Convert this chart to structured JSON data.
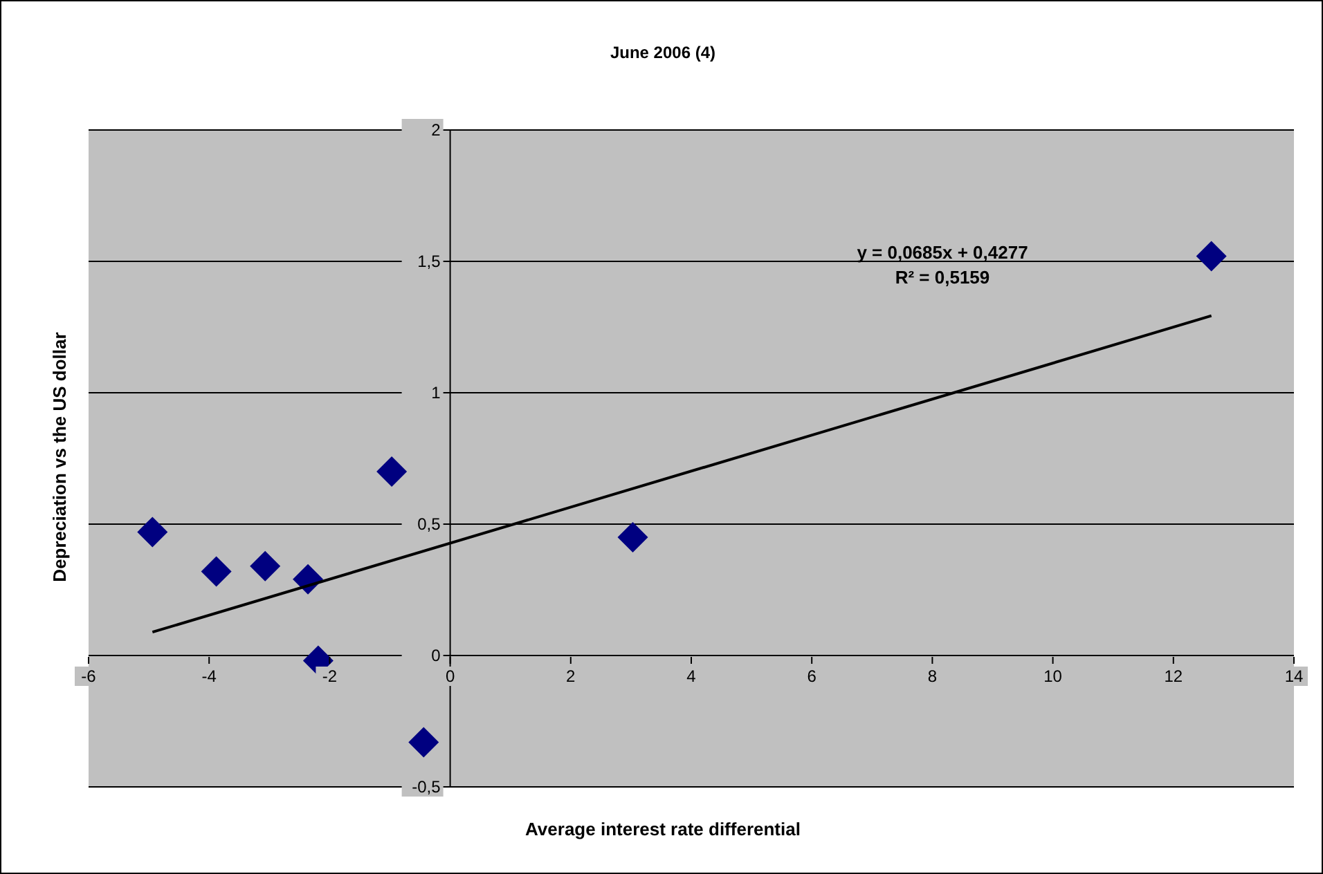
{
  "chart_data": {
    "type": "scatter",
    "title": "June 2006 (4)",
    "xlabel": "Average interest rate differential",
    "ylabel": "Depreciation vs the US dollar",
    "series": [
      {
        "type": "scatter",
        "color": "#000080",
        "x": [
          -4.94,
          -3.88,
          -3.07,
          -2.36,
          -2.19,
          -0.97,
          -0.44,
          3.03,
          12.63
        ],
        "values": [
          0.47,
          0.32,
          0.34,
          0.29,
          -0.02,
          0.7,
          -0.33,
          0.45,
          1.52
        ]
      },
      {
        "type": "line",
        "marker": "none",
        "color": "#000000",
        "x": [
          -4.94,
          12.63
        ],
        "values": [
          0.089,
          1.293
        ]
      }
    ],
    "annotations": [
      "y = 0,0685x + 0,4277",
      "R² = 0,5159"
    ],
    "xlim": [
      -6,
      14
    ],
    "xticks": [
      -6,
      -4,
      -2,
      0,
      2,
      4,
      6,
      8,
      10,
      12,
      14
    ],
    "ylim": [
      -0.5,
      2
    ],
    "yticks": [
      {
        "value": -0.5,
        "label": "-0,5"
      },
      0,
      {
        "value": 0.5,
        "label": "0,5"
      },
      1,
      {
        "value": 1.5,
        "label": "1,5"
      },
      2
    ],
    "grid": "y",
    "marker": "diamond",
    "legend": false
  }
}
